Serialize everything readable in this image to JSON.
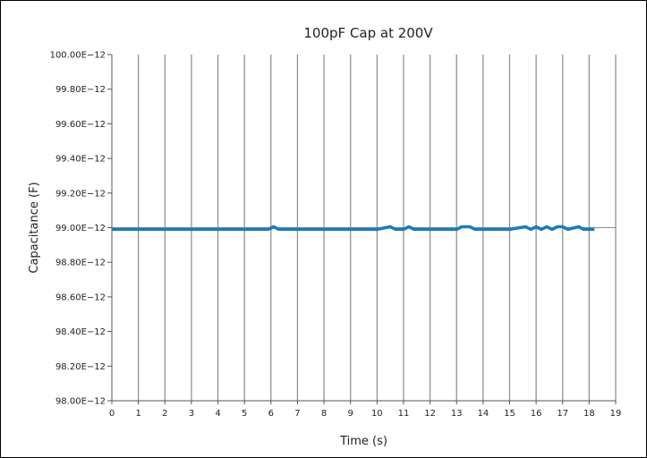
{
  "chart_data": {
    "type": "line",
    "title": "100pF Cap at 200V",
    "xlabel": "Time (s)",
    "ylabel": "Capacitance (F)",
    "xlim": [
      0,
      19
    ],
    "ylim": [
      9.8e-11,
      1e-10
    ],
    "x_ticks": [
      "0",
      "1",
      "2",
      "3",
      "4",
      "5",
      "6",
      "7",
      "8",
      "9",
      "10",
      "11",
      "12",
      "13",
      "14",
      "15",
      "16",
      "17",
      "18",
      "19"
    ],
    "y_ticks": [
      "98.00E−12",
      "98.20E−12",
      "98.40E−12",
      "98.60E−12",
      "98.80E−12",
      "99.00E−12",
      "99.20E−12",
      "99.40E−12",
      "99.60E−12",
      "99.80E−12",
      "100.00E−12"
    ],
    "grid": "vertical",
    "series_color": "#1f7ab8",
    "series": [
      {
        "x": [
          0,
          1,
          2,
          3,
          4,
          5,
          5.9,
          6.1,
          6.3,
          7,
          8,
          9,
          10,
          10.5,
          10.7,
          11,
          11.2,
          11.4,
          12,
          13,
          13.2,
          13.5,
          13.7,
          14,
          15,
          15.6,
          15.8,
          16,
          16.2,
          16.4,
          16.6,
          16.8,
          17,
          17.2,
          17.6,
          17.8,
          18,
          18.2
        ],
        "y": [
          9.899e-11,
          9.899e-11,
          9.899e-11,
          9.899e-11,
          9.899e-11,
          9.899e-11,
          9.899e-11,
          9.9005e-11,
          9.899e-11,
          9.899e-11,
          9.899e-11,
          9.899e-11,
          9.899e-11,
          9.9005e-11,
          9.899e-11,
          9.899e-11,
          9.9005e-11,
          9.899e-11,
          9.899e-11,
          9.899e-11,
          9.9005e-11,
          9.9005e-11,
          9.899e-11,
          9.899e-11,
          9.899e-11,
          9.9005e-11,
          9.899e-11,
          9.9005e-11,
          9.899e-11,
          9.9005e-11,
          9.899e-11,
          9.9005e-11,
          9.9005e-11,
          9.899e-11,
          9.9005e-11,
          9.899e-11,
          9.899e-11,
          9.899e-11
        ]
      }
    ]
  }
}
